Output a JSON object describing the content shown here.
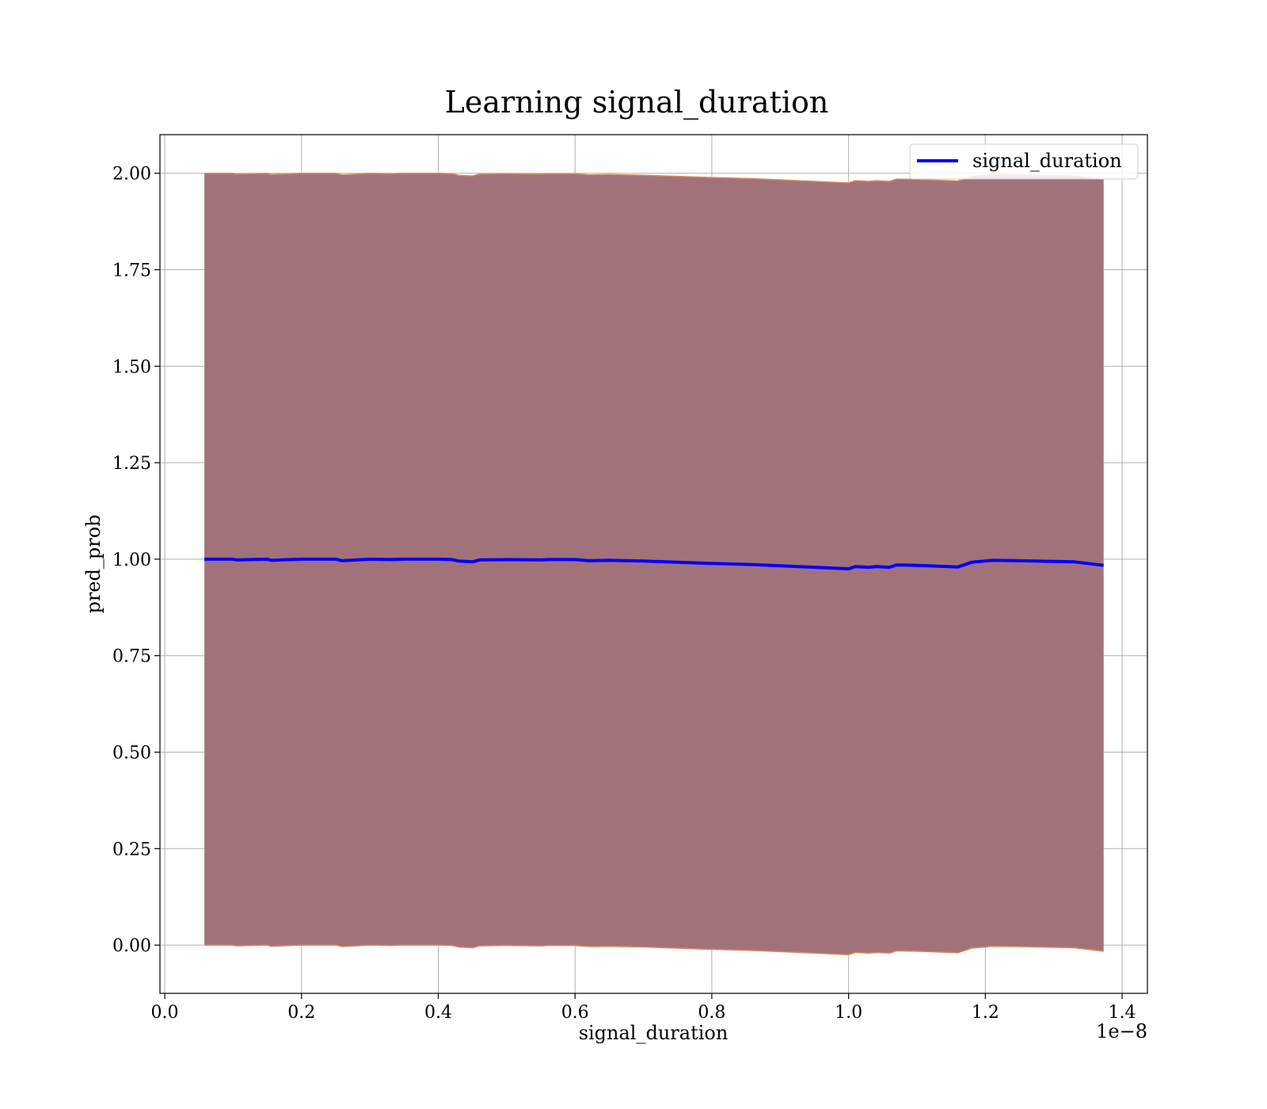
{
  "chart_data": {
    "type": "area",
    "title": "Learning signal_duration",
    "xlabel": "signal_duration",
    "ylabel": "pred_prob",
    "x_offset_label": "1e−8",
    "xlim": [
      -0.007,
      1.437
    ],
    "ylim": [
      -0.125,
      2.1
    ],
    "x_ticks": [
      0.0,
      0.2,
      0.4,
      0.6,
      0.8,
      1.0,
      1.2,
      1.4
    ],
    "x_tick_labels": [
      "0.0",
      "0.2",
      "0.4",
      "0.6",
      "0.8",
      "1.0",
      "1.2",
      "1.4"
    ],
    "y_ticks": [
      0.0,
      0.25,
      0.5,
      0.75,
      1.0,
      1.25,
      1.5,
      1.75,
      2.0
    ],
    "y_tick_labels": [
      "0.00",
      "0.25",
      "0.50",
      "0.75",
      "1.00",
      "1.25",
      "1.50",
      "1.75",
      "2.00"
    ],
    "grid": true,
    "legend_position": "top-right",
    "colors": {
      "line": "#0000ff",
      "band_fill": "#a2727a",
      "band_edge": "#d98a5f",
      "grid": "#b0b0b0"
    },
    "series": [
      {
        "name": "signal_duration",
        "x": [
          0.058,
          0.1,
          0.105,
          0.15,
          0.155,
          0.2,
          0.25,
          0.26,
          0.3,
          0.33,
          0.35,
          0.4,
          0.42,
          0.43,
          0.45,
          0.46,
          0.5,
          0.55,
          0.56,
          0.6,
          0.62,
          0.65,
          0.7,
          0.75,
          0.8,
          0.86,
          0.9,
          0.95,
          1.0,
          1.01,
          1.03,
          1.04,
          1.06,
          1.07,
          1.1,
          1.16,
          1.18,
          1.21,
          1.25,
          1.33,
          1.373
        ],
        "y": [
          1.0,
          1.0,
          0.998,
          1.0,
          0.997,
          1.0,
          1.0,
          0.996,
          1.0,
          0.999,
          1.0,
          1.0,
          0.999,
          0.995,
          0.993,
          0.998,
          0.999,
          0.998,
          0.999,
          0.999,
          0.996,
          0.997,
          0.995,
          0.992,
          0.989,
          0.986,
          0.983,
          0.979,
          0.975,
          0.981,
          0.979,
          0.981,
          0.979,
          0.985,
          0.984,
          0.98,
          0.992,
          0.997,
          0.996,
          0.993,
          0.984
        ]
      }
    ],
    "band": {
      "upper": [
        2.0,
        2.0,
        1.998,
        2.0,
        1.997,
        2.0,
        2.0,
        1.996,
        2.0,
        1.999,
        2.0,
        2.0,
        1.999,
        1.995,
        1.993,
        1.998,
        1.999,
        1.998,
        1.999,
        1.999,
        1.996,
        1.997,
        1.995,
        1.992,
        1.989,
        1.986,
        1.983,
        1.979,
        1.975,
        1.981,
        1.979,
        1.981,
        1.979,
        1.985,
        1.984,
        1.98,
        1.992,
        1.997,
        1.996,
        1.993,
        1.984
      ],
      "lower": [
        0.0,
        0.0,
        -0.002,
        0.0,
        -0.003,
        0.0,
        0.0,
        -0.004,
        0.0,
        -0.001,
        0.0,
        0.0,
        -0.001,
        -0.005,
        -0.007,
        -0.002,
        -0.001,
        -0.002,
        -0.001,
        -0.001,
        -0.004,
        -0.003,
        -0.005,
        -0.008,
        -0.011,
        -0.014,
        -0.017,
        -0.021,
        -0.025,
        -0.019,
        -0.021,
        -0.019,
        -0.021,
        -0.015,
        -0.016,
        -0.02,
        -0.008,
        -0.003,
        -0.004,
        -0.007,
        -0.016
      ]
    }
  }
}
